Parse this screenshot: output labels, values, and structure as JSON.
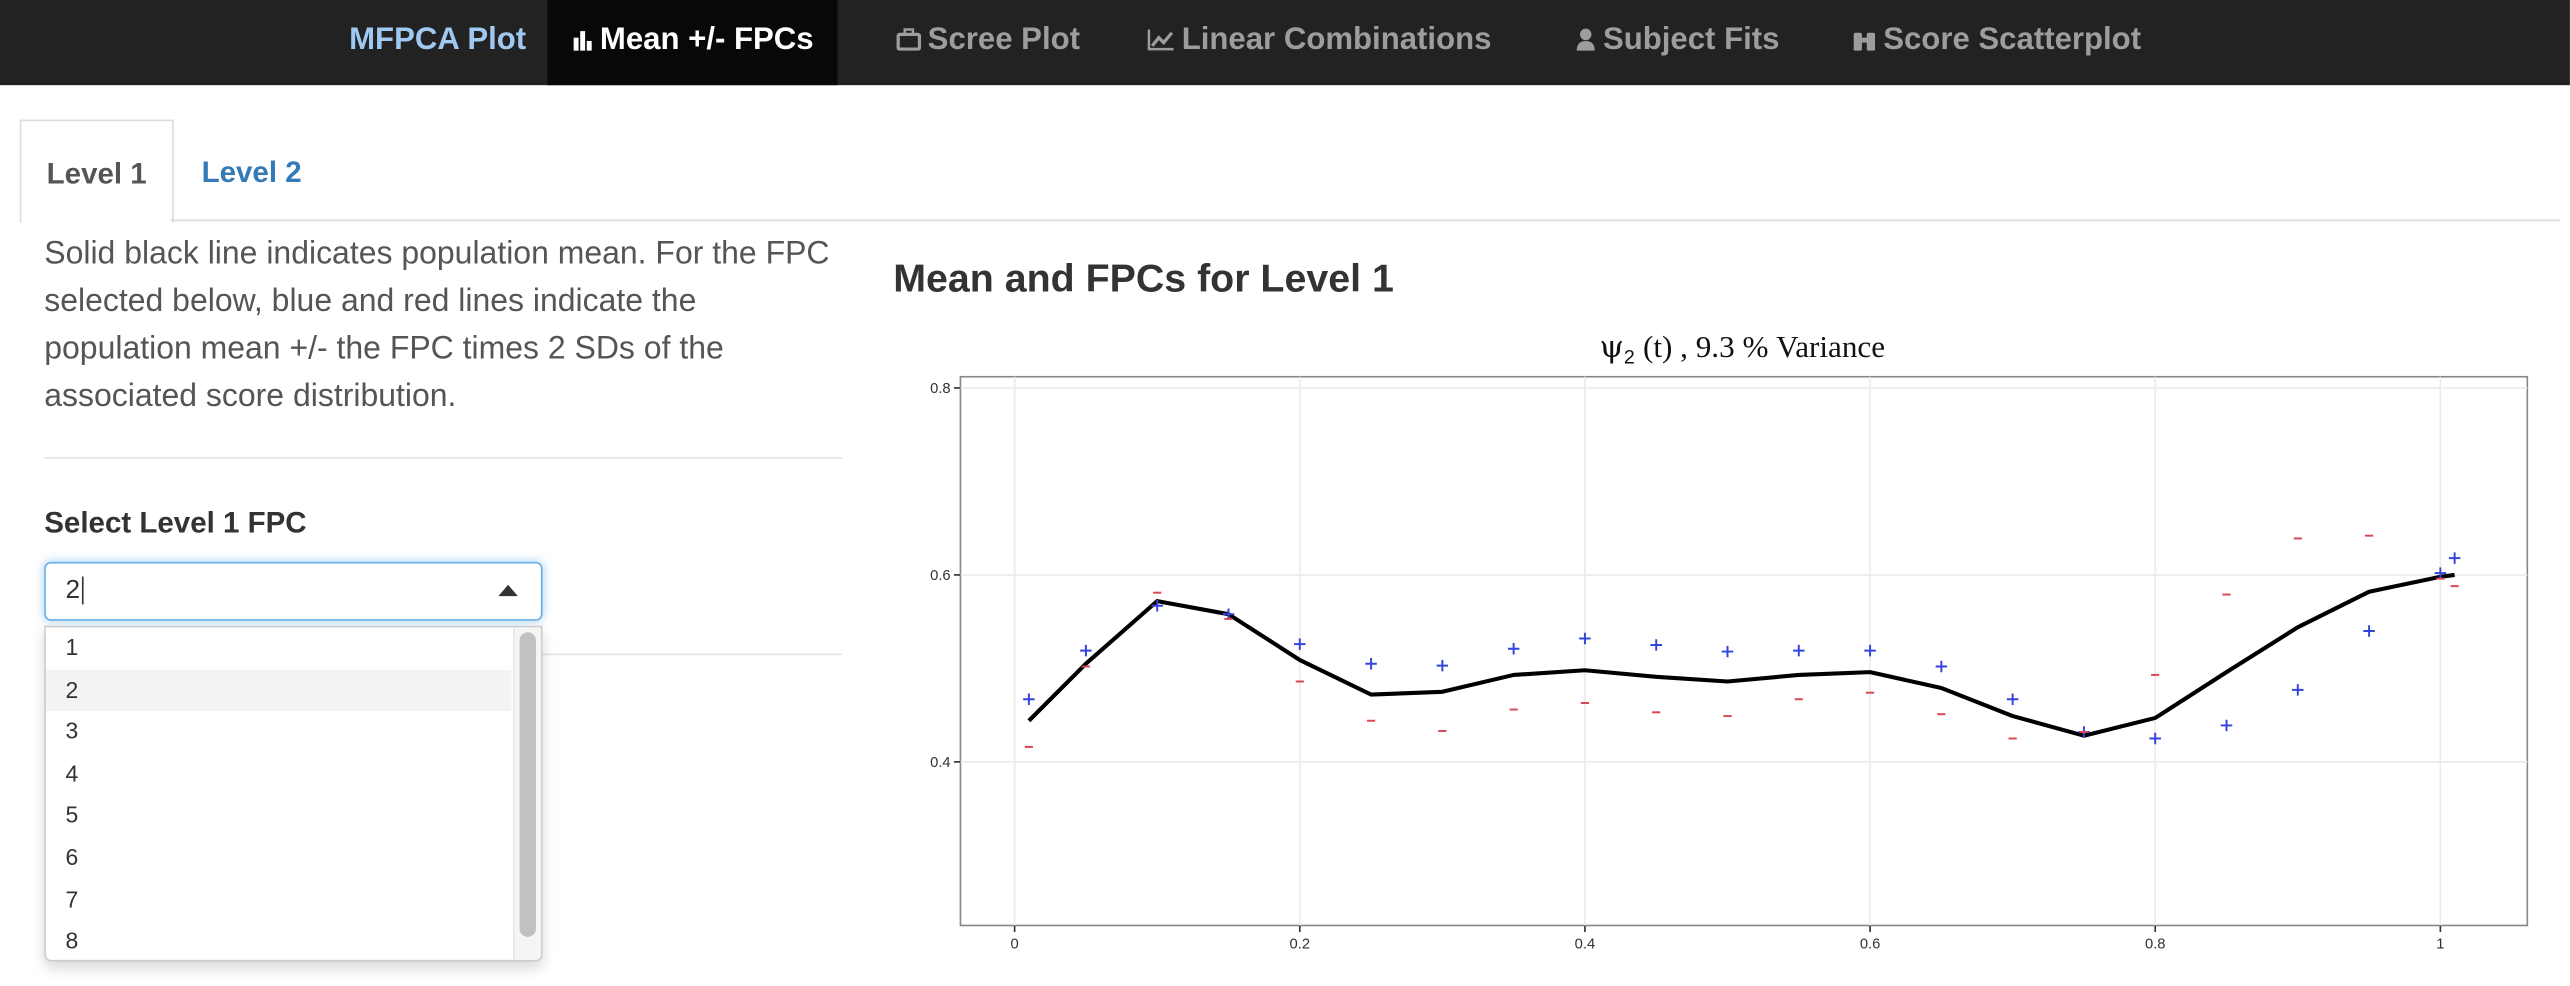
{
  "nav": {
    "brand": "MFPCA Plot",
    "items": [
      "Mean +/- FPCs",
      "Scree Plot",
      "Linear Combinations",
      "Subject Fits",
      "Score Scatterplot"
    ]
  },
  "tabs": [
    "Level 1",
    "Level 2"
  ],
  "description": "Solid black line indicates population mean. For the FPC selected below, blue and red lines indicate the population mean +/- the FPC times 2 SDs of the associated score distribution.",
  "select": {
    "label": "Select Level 1 FPC",
    "value": "2",
    "options": [
      "1",
      "2",
      "3",
      "4",
      "5",
      "6",
      "7",
      "8"
    ]
  },
  "heading": "Mean and FPCs for Level 1",
  "chart_data": {
    "type": "line",
    "title_symbol": "ψ",
    "title_subscript": "2",
    "title": "(t) , 9.3 % Variance",
    "x": [
      0.01,
      0.05,
      0.1,
      0.15,
      0.2,
      0.25,
      0.3,
      0.35,
      0.4,
      0.45,
      0.5,
      0.55,
      0.6,
      0.65,
      0.7,
      0.75,
      0.8,
      0.85,
      0.9,
      0.95,
      1.0,
      1.01
    ],
    "series": [
      {
        "color": "#000000",
        "marker": "line",
        "values": [
          0.444,
          0.505,
          0.572,
          0.558,
          0.509,
          0.472,
          0.475,
          0.493,
          0.498,
          0.491,
          0.486,
          0.493,
          0.496,
          0.479,
          0.449,
          0.428,
          0.447,
          0.496,
          0.544,
          0.582,
          0.598,
          0.6
        ]
      },
      {
        "color": "#3344dd",
        "marker": "plus",
        "values": [
          0.467,
          0.519,
          0.567,
          0.558,
          0.526,
          0.505,
          0.503,
          0.521,
          0.532,
          0.525,
          0.518,
          0.519,
          0.519,
          0.502,
          0.467,
          0.432,
          0.425,
          0.439,
          0.477,
          0.54,
          0.602,
          0.618
        ]
      },
      {
        "color": "#dd4455",
        "marker": "minus",
        "values": [
          0.416,
          0.502,
          0.581,
          0.553,
          0.486,
          0.444,
          0.433,
          0.456,
          0.463,
          0.453,
          0.449,
          0.467,
          0.474,
          0.451,
          0.425,
          0.432,
          0.493,
          0.579,
          0.639,
          0.642,
          0.596,
          0.588
        ]
      }
    ],
    "xlim": [
      -0.038,
      1.061
    ],
    "ylim": [
      0.225,
      0.812
    ],
    "xticks": [
      0,
      0.2,
      0.4,
      0.6,
      0.8,
      1
    ],
    "yticks": [
      0.4,
      0.6,
      0.8
    ],
    "grid": true
  }
}
